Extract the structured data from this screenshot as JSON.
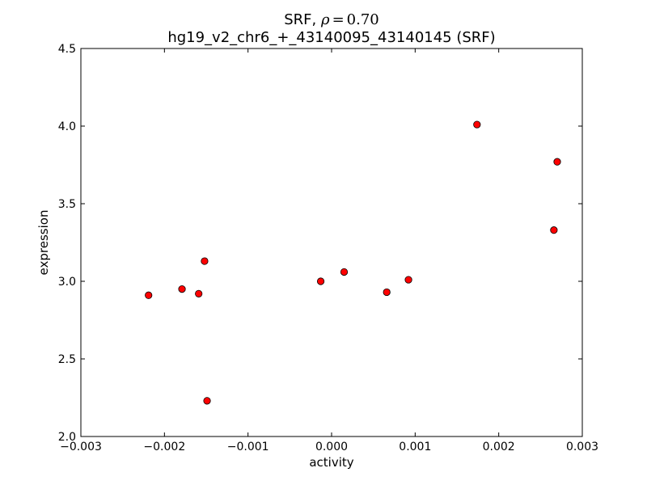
{
  "chart_data": {
    "type": "scatter",
    "title_prefix": "SRF, ",
    "title_rho": "ρ",
    "title_eq": "=",
    "title_value": "0.70",
    "subtitle": "hg19_v2_chr6_+_43140095_43140145 (SRF)",
    "xlabel": "activity",
    "ylabel": "expression",
    "xlim": [
      -0.003,
      0.003
    ],
    "ylim": [
      2.0,
      4.5
    ],
    "xticks": [
      -0.003,
      -0.002,
      -0.001,
      0.0,
      0.001,
      0.002,
      0.003
    ],
    "xtick_labels": [
      "−0.003",
      "−0.002",
      "−0.001",
      "0.000",
      "0.001",
      "0.002",
      "0.003"
    ],
    "yticks": [
      2.0,
      2.5,
      3.0,
      3.5,
      4.0,
      4.5
    ],
    "ytick_labels": [
      "2.0",
      "2.5",
      "3.0",
      "3.5",
      "4.0",
      "4.5"
    ],
    "grid": false,
    "marker_color": "#ff0000",
    "marker_edge_color": "#000000",
    "points": [
      {
        "x": -0.00219,
        "y": 2.91
      },
      {
        "x": -0.00179,
        "y": 2.95
      },
      {
        "x": -0.00159,
        "y": 2.92
      },
      {
        "x": -0.00152,
        "y": 3.13
      },
      {
        "x": -0.00149,
        "y": 2.23
      },
      {
        "x": -0.00013,
        "y": 3.0
      },
      {
        "x": 0.00015,
        "y": 3.06
      },
      {
        "x": 0.00066,
        "y": 2.93
      },
      {
        "x": 0.00092,
        "y": 3.01
      },
      {
        "x": 0.00174,
        "y": 4.01
      },
      {
        "x": 0.00266,
        "y": 3.33
      },
      {
        "x": 0.0027,
        "y": 3.77
      }
    ]
  }
}
